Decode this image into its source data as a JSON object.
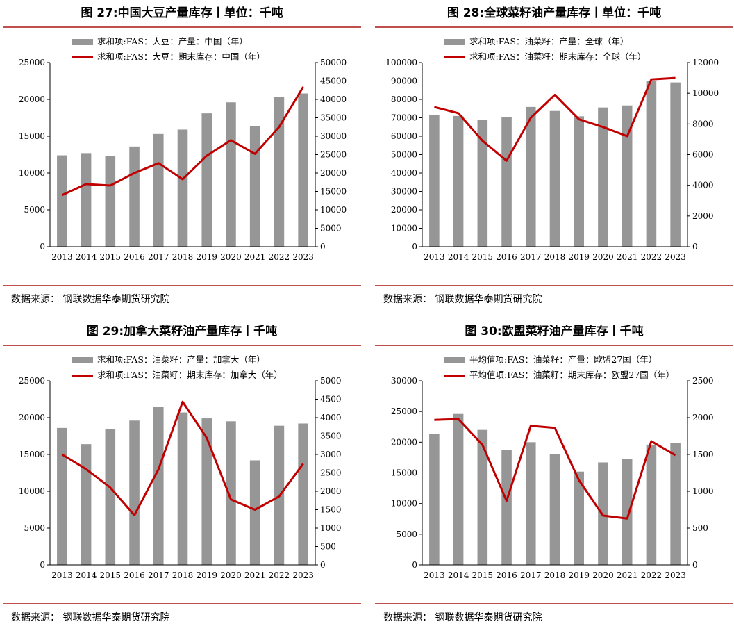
{
  "source_label": "数据来源：",
  "source_text": "钢联数据华泰期货研究院",
  "chart_data": [
    {
      "type": "bar",
      "title": "图 27:中国大豆产量库存丨单位：千吨",
      "categories": [
        "2013",
        "2014",
        "2015",
        "2016",
        "2017",
        "2018",
        "2019",
        "2020",
        "2021",
        "2022",
        "2023"
      ],
      "series": [
        {
          "name": "求和项:FAS：大豆：产量：中国（年）",
          "type": "bar",
          "axis": "left",
          "color": "#969696",
          "values": [
            12400,
            12700,
            12350,
            13600,
            15300,
            15900,
            18100,
            19600,
            16400,
            20300,
            20800
          ]
        },
        {
          "name": "求和项:FAS：大豆：期末库存：中国（年）",
          "type": "line",
          "axis": "right",
          "color": "#c00000",
          "values": [
            14000,
            17000,
            16600,
            20000,
            22700,
            18300,
            24700,
            28900,
            25200,
            32500,
            43400
          ]
        }
      ],
      "ylim_left": [
        0,
        25000
      ],
      "yticks_left": [
        0,
        5000,
        10000,
        15000,
        20000,
        25000
      ],
      "ylim_right": [
        0,
        50000
      ],
      "yticks_right": [
        0,
        5000,
        10000,
        15000,
        20000,
        25000,
        30000,
        35000,
        40000,
        45000,
        50000
      ]
    },
    {
      "type": "bar",
      "title": "图 28:全球菜籽油产量库存丨单位：千吨",
      "categories": [
        "2013",
        "2014",
        "2015",
        "2016",
        "2017",
        "2018",
        "2019",
        "2020",
        "2021",
        "2022",
        "2023"
      ],
      "series": [
        {
          "name": "求和项:FAS：油菜籽：产量：全球（年）",
          "type": "bar",
          "axis": "left",
          "color": "#969696",
          "values": [
            71500,
            71000,
            68800,
            70300,
            75900,
            73700,
            70800,
            75600,
            76700,
            89800,
            89200
          ]
        },
        {
          "name": "求和项:FAS：油菜籽：期末库存：全球（年）",
          "type": "line",
          "axis": "right",
          "color": "#c00000",
          "values": [
            9100,
            8700,
            6900,
            5600,
            8400,
            9900,
            8300,
            7800,
            7200,
            10900,
            11000
          ]
        }
      ],
      "ylim_left": [
        0,
        100000
      ],
      "yticks_left": [
        0,
        10000,
        20000,
        30000,
        40000,
        50000,
        60000,
        70000,
        80000,
        90000,
        100000
      ],
      "ylim_right": [
        0,
        12000
      ],
      "yticks_right": [
        0,
        2000,
        4000,
        6000,
        8000,
        10000,
        12000
      ]
    },
    {
      "type": "bar",
      "title": "图 29:加拿大菜籽油产量库存丨千吨",
      "categories": [
        "2013",
        "2014",
        "2015",
        "2016",
        "2017",
        "2018",
        "2019",
        "2020",
        "2021",
        "2022",
        "2023"
      ],
      "series": [
        {
          "name": "求和项:FAS：油菜籽：产量：加拿大（年）",
          "type": "bar",
          "axis": "left",
          "color": "#969696",
          "values": [
            18600,
            16400,
            18400,
            19600,
            21500,
            20700,
            19900,
            19500,
            14200,
            18900,
            19200
          ]
        },
        {
          "name": "求和项:FAS：油菜籽：期末库存：加拿大（年）",
          "type": "line",
          "axis": "right",
          "color": "#c00000",
          "values": [
            3000,
            2600,
            2100,
            1350,
            2600,
            4430,
            3450,
            1780,
            1500,
            1860,
            2750
          ]
        }
      ],
      "ylim_left": [
        0,
        25000
      ],
      "yticks_left": [
        0,
        5000,
        10000,
        15000,
        20000,
        25000
      ],
      "ylim_right": [
        0,
        5000
      ],
      "yticks_right": [
        0,
        500,
        1000,
        1500,
        2000,
        2500,
        3000,
        3500,
        4000,
        4500,
        5000
      ]
    },
    {
      "type": "bar",
      "title": "图 30:欧盟菜籽油产量库存丨千吨",
      "categories": [
        "2013",
        "2014",
        "2015",
        "2016",
        "2017",
        "2018",
        "2019",
        "2020",
        "2021",
        "2022",
        "2023"
      ],
      "series": [
        {
          "name": "平均值项:FAS：油菜籽：产量：欧盟27国（年）",
          "type": "bar",
          "axis": "left",
          "color": "#969696",
          "values": [
            21300,
            24600,
            22000,
            18700,
            20000,
            18000,
            15200,
            16700,
            17300,
            19600,
            19900
          ]
        },
        {
          "name": "平均值项:FAS：油菜籽：期末库存：欧盟27国（年）",
          "type": "line",
          "axis": "right",
          "color": "#c00000",
          "values": [
            1970,
            1980,
            1630,
            870,
            1890,
            1860,
            1150,
            670,
            630,
            1680,
            1490
          ]
        }
      ],
      "ylim_left": [
        0,
        30000
      ],
      "yticks_left": [
        0,
        5000,
        10000,
        15000,
        20000,
        25000,
        30000
      ],
      "ylim_right": [
        0,
        2500
      ],
      "yticks_right": [
        0,
        500,
        1000,
        1500,
        2000,
        2500
      ]
    }
  ]
}
